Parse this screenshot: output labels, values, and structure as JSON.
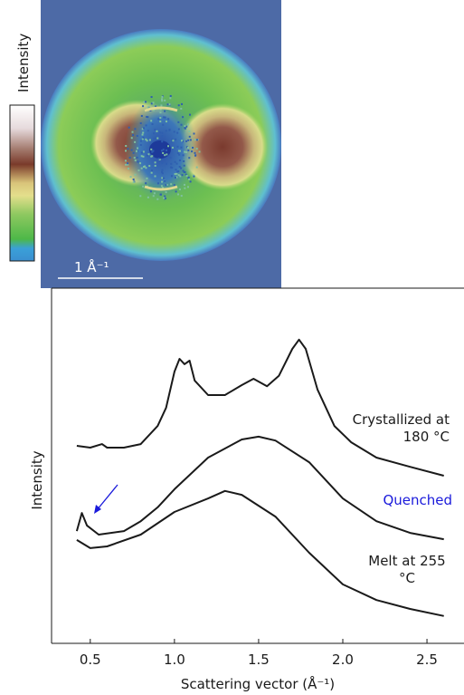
{
  "image_panel": {
    "colorbar_label": "Intensity",
    "scale_bar_label": "1 Å⁻¹"
  },
  "chart_data": {
    "type": "line",
    "x_label": "Scattering vector (Å⁻¹)",
    "y_label": "Intensity",
    "xlim": [
      0.27,
      2.72
    ],
    "xticks": [
      0.5,
      1.0,
      1.5,
      2.0,
      2.5
    ],
    "ylim": [
      0,
      100
    ],
    "grid": false,
    "series": [
      {
        "name": "Crystallized at 180 °C",
        "color": "#1a1a1a",
        "label_color": "#1a1a1a",
        "x": [
          0.42,
          0.5,
          0.57,
          0.6,
          0.7,
          0.8,
          0.9,
          0.95,
          1.0,
          1.03,
          1.06,
          1.09,
          1.12,
          1.2,
          1.3,
          1.4,
          1.47,
          1.55,
          1.62,
          1.7,
          1.74,
          1.78,
          1.85,
          1.95,
          2.05,
          2.2,
          2.4,
          2.6
        ],
        "values": [
          55.6,
          55.1,
          56.1,
          55.1,
          55.1,
          56.1,
          61.2,
          66.3,
          76.5,
          80.1,
          78.6,
          79.6,
          74,
          69.9,
          69.9,
          72.7,
          74.5,
          72.4,
          75.3,
          82.9,
          85.5,
          82.9,
          71.4,
          61.2,
          56.6,
          52.3,
          49.7,
          47.2
        ]
      },
      {
        "name": "Quenched",
        "color": "#1a1a1a",
        "label_color": "#1a1adb",
        "x": [
          0.42,
          0.45,
          0.48,
          0.55,
          0.7,
          0.8,
          0.9,
          1.0,
          1.2,
          1.4,
          1.5,
          1.6,
          1.8,
          2.0,
          2.2,
          2.4,
          2.6
        ],
        "values": [
          31.6,
          36.7,
          33.2,
          30.6,
          31.6,
          34.4,
          38.3,
          43.4,
          52.3,
          57.4,
          58.2,
          57.1,
          51,
          40.8,
          34.4,
          31.1,
          29.3
        ]
      },
      {
        "name": "Melt at 255 °C",
        "color": "#1a1a1a",
        "label_color": "#1a1a1a",
        "x": [
          0.42,
          0.5,
          0.6,
          0.8,
          1.0,
          1.2,
          1.3,
          1.4,
          1.6,
          1.8,
          2.0,
          2.2,
          2.4,
          2.6
        ],
        "values": [
          29.1,
          26.8,
          27.3,
          30.6,
          37,
          40.8,
          42.9,
          41.8,
          35.7,
          25.5,
          16.6,
          12.2,
          9.7,
          7.7
        ]
      }
    ]
  }
}
